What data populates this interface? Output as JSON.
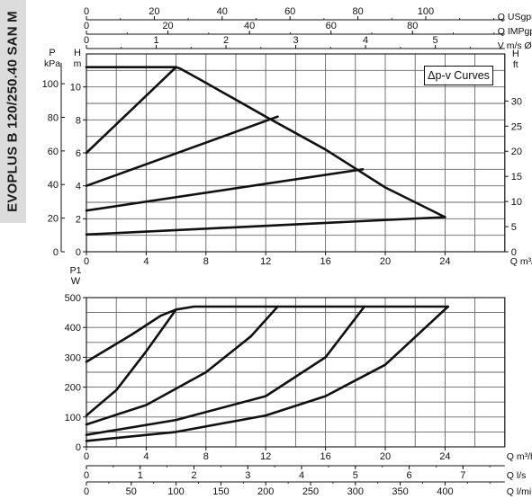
{
  "side_label": "EVOPLUS B 120/250.40 SAN M",
  "curves_label": "Δp-v Curves",
  "chart_data": [
    {
      "type": "line",
      "name": "head",
      "x_unit": "Q m³/h",
      "xlim": [
        0,
        28
      ],
      "x_ticks": [
        0,
        4,
        8,
        12,
        16,
        20,
        24
      ],
      "left_axis_1": {
        "label": "P",
        "unit": "kPa",
        "ticks": [
          0,
          20,
          40,
          60,
          80,
          100
        ]
      },
      "left_axis_2": {
        "label": "H",
        "unit": "m",
        "lim": [
          0,
          12
        ],
        "ticks": [
          0,
          2,
          4,
          6,
          8,
          10
        ]
      },
      "right_axis": {
        "label": "H",
        "unit": "ft",
        "ticks": [
          0,
          5,
          10,
          15,
          20,
          25,
          30
        ]
      },
      "top_axis_1": {
        "unit": "Q USgpm",
        "ticks": [
          0,
          20,
          40,
          60,
          80,
          100
        ]
      },
      "top_axis_2": {
        "unit": "Q IMPgpm",
        "ticks": [
          0,
          20,
          40,
          60,
          80
        ]
      },
      "top_axis_3": {
        "unit": "V m/s Ø 40",
        "ticks": [
          0,
          1,
          2,
          3,
          4,
          5
        ]
      },
      "grid": true,
      "series": [
        {
          "values": [
            [
              0,
              11.2
            ],
            [
              6,
              11.2
            ],
            [
              6.3,
              11.1
            ],
            [
              7.5,
              10.5
            ],
            [
              12,
              8.2
            ],
            [
              16,
              6.2
            ],
            [
              20,
              3.9
            ],
            [
              24,
              2.1
            ]
          ]
        },
        {
          "values": [
            [
              0,
              6
            ],
            [
              6,
              11.2
            ]
          ]
        },
        {
          "values": [
            [
              0,
              4
            ],
            [
              12.8,
              8.2
            ]
          ]
        },
        {
          "values": [
            [
              0,
              2.5
            ],
            [
              18.5,
              5
            ]
          ]
        },
        {
          "values": [
            [
              0,
              1.05
            ],
            [
              24,
              2.1
            ]
          ]
        }
      ]
    },
    {
      "type": "line",
      "name": "power",
      "x_unit": "Q m³/h",
      "xlim": [
        0,
        28
      ],
      "x_ticks": [
        0,
        4,
        8,
        12,
        16,
        20,
        24
      ],
      "y_axis": {
        "label": "P1",
        "unit": "W",
        "lim": [
          0,
          500
        ],
        "ticks": [
          0,
          100,
          200,
          300,
          400,
          500
        ]
      },
      "bottom_axis_2": {
        "unit": "Q l/s",
        "ticks": [
          0,
          1,
          2,
          3,
          4,
          5,
          6,
          7
        ]
      },
      "bottom_axis_3": {
        "unit": "Q l/min",
        "ticks": [
          0,
          50,
          100,
          150,
          200,
          250,
          300,
          350,
          400
        ]
      },
      "grid": true,
      "series": [
        {
          "values": [
            [
              0,
              285
            ],
            [
              3,
              375
            ],
            [
              5,
              440
            ],
            [
              6,
              460
            ],
            [
              7.2,
              470
            ],
            [
              24.2,
              470
            ]
          ]
        },
        {
          "values": [
            [
              0,
              105
            ],
            [
              2,
              190
            ],
            [
              4,
              320
            ],
            [
              6,
              460
            ]
          ]
        },
        {
          "values": [
            [
              0,
              75
            ],
            [
              4,
              140
            ],
            [
              8,
              250
            ],
            [
              11,
              370
            ],
            [
              12.8,
              470
            ]
          ]
        },
        {
          "values": [
            [
              0,
              40
            ],
            [
              6,
              90
            ],
            [
              12,
              170
            ],
            [
              16,
              300
            ],
            [
              18.6,
              470
            ]
          ]
        },
        {
          "values": [
            [
              0,
              20
            ],
            [
              6,
              50
            ],
            [
              12,
              105
            ],
            [
              16,
              170
            ],
            [
              20,
              275
            ],
            [
              24.2,
              470
            ]
          ]
        }
      ]
    }
  ]
}
